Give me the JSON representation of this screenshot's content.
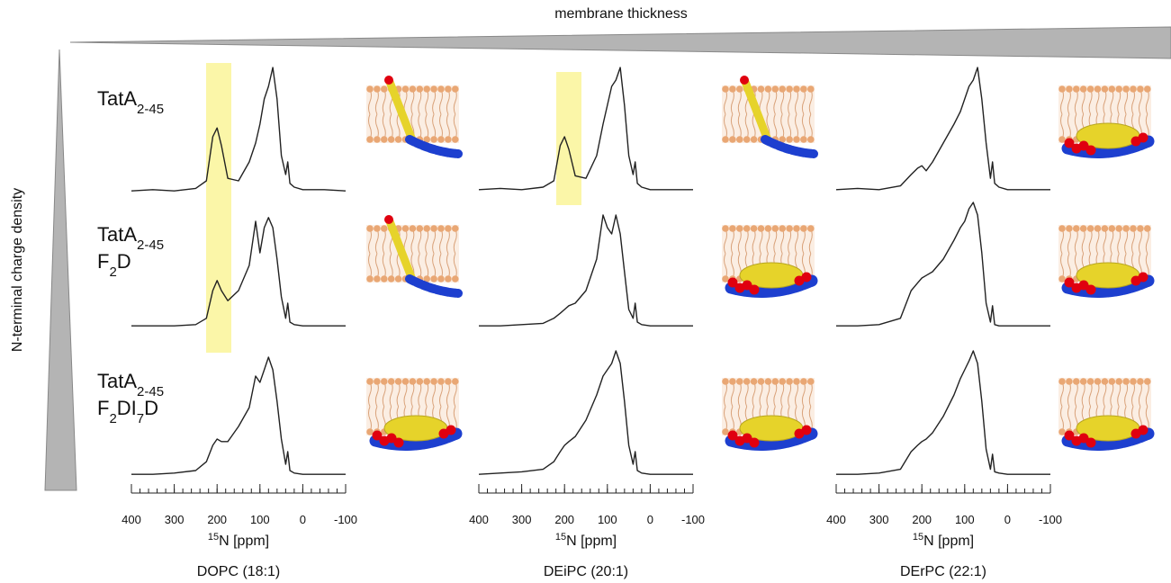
{
  "top_label": "membrane thickness",
  "side_label": "N-terminal charge density",
  "row_labels": [
    {
      "lines": [
        [
          {
            "text": "TatA"
          },
          {
            "text": "2-45",
            "sub": true
          }
        ]
      ]
    },
    {
      "lines": [
        [
          {
            "text": "TatA"
          },
          {
            "text": "2-45",
            "sub": true
          }
        ],
        [
          {
            "text": "F"
          },
          {
            "text": "2",
            "sub": true
          },
          {
            "text": "D"
          }
        ]
      ]
    },
    {
      "lines": [
        [
          {
            "text": "TatA"
          },
          {
            "text": "2-45",
            "sub": true
          }
        ],
        [
          {
            "text": "F"
          },
          {
            "text": "2",
            "sub": true
          },
          {
            "text": "DI"
          },
          {
            "text": "7",
            "sub": true
          },
          {
            "text": "D"
          }
        ]
      ]
    }
  ],
  "chart_data": [
    {
      "type": "line",
      "title": "DOPC (18:1)",
      "xlabel": [
        {
          "text": "15",
          "sup": true
        },
        {
          "text": "N [ppm]"
        }
      ],
      "xlim": [
        400,
        -100
      ],
      "ylim": [
        0,
        100
      ],
      "xticks": [
        400,
        300,
        200,
        100,
        0,
        -100
      ],
      "xticks_minor": [
        400,
        380,
        360,
        340,
        320,
        300,
        280,
        260,
        240,
        220,
        200,
        180,
        160,
        140,
        120,
        100,
        80,
        60,
        40,
        20,
        0,
        -20,
        -40,
        -60,
        -80,
        -100
      ],
      "x": [
        400,
        350,
        300,
        250,
        225,
        210,
        200,
        190,
        175,
        150,
        125,
        110,
        100,
        90,
        80,
        70,
        60,
        50,
        40,
        35,
        30,
        20,
        0,
        -50,
        -100
      ],
      "series": [
        {
          "color": "#222222",
          "values": [
            2,
            3,
            2,
            4,
            10,
            45,
            52,
            38,
            12,
            10,
            25,
            40,
            55,
            75,
            85,
            100,
            75,
            30,
            15,
            25,
            8,
            5,
            3,
            3,
            2
          ]
        },
        {
          "color": "#222222",
          "values": [
            2,
            2,
            2,
            3,
            8,
            30,
            38,
            30,
            22,
            30,
            50,
            85,
            60,
            80,
            88,
            80,
            55,
            25,
            8,
            20,
            5,
            3,
            2,
            2,
            2
          ]
        },
        {
          "color": "#222222",
          "values": [
            2,
            2,
            3,
            5,
            12,
            25,
            30,
            28,
            28,
            40,
            55,
            80,
            75,
            85,
            95,
            85,
            60,
            30,
            10,
            20,
            5,
            3,
            2,
            2,
            2
          ]
        }
      ]
    },
    {
      "type": "line",
      "title": "DEiPC  (20:1)",
      "xlabel": [
        {
          "text": "15",
          "sup": true
        },
        {
          "text": "N [ppm]"
        }
      ],
      "xlim": [
        400,
        -100
      ],
      "ylim": [
        0,
        100
      ],
      "xticks": [
        400,
        300,
        200,
        100,
        0,
        -100
      ],
      "xticks_minor": [
        400,
        380,
        360,
        340,
        320,
        300,
        280,
        260,
        240,
        220,
        200,
        180,
        160,
        140,
        120,
        100,
        80,
        60,
        40,
        20,
        0,
        -20,
        -40,
        -60,
        -80,
        -100
      ],
      "x": [
        400,
        350,
        300,
        250,
        225,
        210,
        200,
        190,
        175,
        150,
        125,
        110,
        100,
        90,
        80,
        70,
        60,
        50,
        40,
        35,
        30,
        20,
        0,
        -50,
        -100
      ],
      "series": [
        {
          "color": "#222222",
          "values": [
            3,
            4,
            3,
            5,
            10,
            38,
            45,
            35,
            14,
            12,
            30,
            55,
            70,
            85,
            90,
            100,
            70,
            30,
            15,
            25,
            8,
            5,
            3,
            3,
            3
          ]
        },
        {
          "color": "#222222",
          "values": [
            2,
            2,
            3,
            4,
            8,
            12,
            15,
            18,
            20,
            30,
            55,
            90,
            80,
            75,
            90,
            75,
            45,
            15,
            8,
            20,
            5,
            3,
            2,
            2,
            2
          ]
        },
        {
          "color": "#222222",
          "values": [
            2,
            3,
            4,
            6,
            12,
            20,
            25,
            28,
            32,
            45,
            65,
            80,
            85,
            90,
            100,
            90,
            60,
            25,
            10,
            20,
            5,
            3,
            2,
            2,
            2
          ]
        }
      ]
    },
    {
      "type": "line",
      "title": "DErPC (22:1)",
      "xlabel": [
        {
          "text": "15",
          "sup": true
        },
        {
          "text": "N [ppm]"
        }
      ],
      "xlim": [
        400,
        -100
      ],
      "ylim": [
        0,
        100
      ],
      "xticks": [
        400,
        300,
        200,
        100,
        0,
        -100
      ],
      "xticks_minor": [
        400,
        380,
        360,
        340,
        320,
        300,
        280,
        260,
        240,
        220,
        200,
        180,
        160,
        140,
        120,
        100,
        80,
        60,
        40,
        20,
        0,
        -20,
        -40,
        -60,
        -80,
        -100
      ],
      "x": [
        400,
        350,
        300,
        250,
        225,
        210,
        200,
        190,
        175,
        150,
        125,
        110,
        100,
        90,
        80,
        70,
        60,
        50,
        40,
        35,
        30,
        20,
        0,
        -50,
        -100
      ],
      "series": [
        {
          "color": "#222222",
          "values": [
            3,
            4,
            3,
            6,
            15,
            20,
            22,
            18,
            25,
            40,
            55,
            65,
            75,
            85,
            90,
            100,
            75,
            40,
            12,
            25,
            8,
            5,
            3,
            3,
            3
          ]
        },
        {
          "color": "#222222",
          "values": [
            2,
            2,
            3,
            8,
            30,
            36,
            40,
            42,
            45,
            55,
            70,
            80,
            85,
            95,
            100,
            90,
            60,
            20,
            5,
            18,
            3,
            2,
            2,
            2,
            2
          ]
        },
        {
          "color": "#222222",
          "values": [
            2,
            2,
            3,
            6,
            20,
            25,
            28,
            30,
            35,
            48,
            65,
            78,
            85,
            92,
            100,
            90,
            60,
            22,
            6,
            18,
            4,
            3,
            2,
            2,
            2
          ]
        }
      ]
    }
  ]
}
